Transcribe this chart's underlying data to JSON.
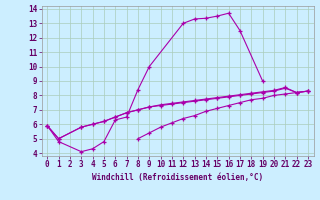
{
  "xlabel": "Windchill (Refroidissement éolien,°C)",
  "bg_color": "#cceeff",
  "grid_color": "#aaccbb",
  "line_color": "#aa00aa",
  "xlim": [
    -0.5,
    23.5
  ],
  "ylim": [
    3.8,
    14.2
  ],
  "xticks": [
    0,
    1,
    2,
    3,
    4,
    5,
    6,
    7,
    8,
    9,
    10,
    11,
    12,
    13,
    14,
    15,
    16,
    17,
    18,
    19,
    20,
    21,
    22,
    23
  ],
  "yticks": [
    4,
    5,
    6,
    7,
    8,
    9,
    10,
    11,
    12,
    13,
    14
  ],
  "curves": [
    {
      "x": [
        0,
        1,
        3,
        4,
        5,
        6,
        7,
        8,
        9,
        12,
        13,
        14,
        15,
        16,
        17,
        19
      ],
      "y": [
        5.9,
        4.8,
        4.1,
        4.3,
        4.8,
        6.3,
        6.5,
        8.4,
        10.0,
        13.0,
        13.3,
        13.35,
        13.5,
        13.7,
        12.5,
        9.0
      ]
    },
    {
      "x": [
        0,
        1,
        3,
        4,
        5,
        6,
        7,
        8,
        9,
        10,
        11,
        12,
        13,
        14,
        15,
        16,
        17,
        18,
        19,
        20,
        21,
        22,
        23
      ],
      "y": [
        5.9,
        5.0,
        5.8,
        6.0,
        6.2,
        6.5,
        6.8,
        7.0,
        7.2,
        7.3,
        7.4,
        7.5,
        7.6,
        7.7,
        7.8,
        7.9,
        8.0,
        8.1,
        8.2,
        8.3,
        8.5,
        8.2,
        8.3
      ]
    },
    {
      "x": [
        0,
        1,
        3,
        4,
        5,
        6,
        7,
        8,
        9,
        10,
        11,
        12,
        13,
        14,
        15,
        16,
        17,
        18,
        19,
        20,
        21,
        22,
        23
      ],
      "y": [
        5.9,
        5.0,
        5.8,
        6.0,
        6.2,
        6.5,
        6.8,
        7.0,
        7.2,
        7.35,
        7.45,
        7.55,
        7.65,
        7.75,
        7.85,
        7.95,
        8.05,
        8.15,
        8.25,
        8.35,
        8.55,
        8.2,
        8.3
      ]
    },
    {
      "x": [
        8,
        9,
        10,
        11,
        12,
        13,
        14,
        15,
        16,
        17,
        18,
        19,
        20,
        21,
        22,
        23
      ],
      "y": [
        5.0,
        5.4,
        5.8,
        6.1,
        6.4,
        6.6,
        6.9,
        7.1,
        7.3,
        7.5,
        7.7,
        7.8,
        8.0,
        8.1,
        8.2,
        8.3
      ]
    }
  ]
}
